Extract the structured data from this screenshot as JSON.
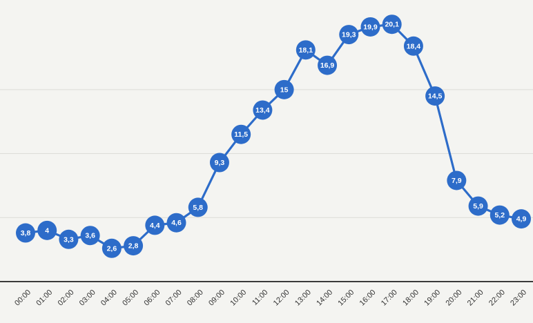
{
  "chart_data": {
    "type": "line",
    "title": "",
    "xlabel": "",
    "ylabel": "",
    "categories": [
      "00:00",
      "01:00",
      "02:00",
      "03:00",
      "04:00",
      "05:00",
      "06:00",
      "07:00",
      "08:00",
      "09:00",
      "10:00",
      "11:00",
      "12:00",
      "13:00",
      "14:00",
      "15:00",
      "16:00",
      "17:00",
      "18:00",
      "19:00",
      "20:00",
      "21:00",
      "22:00",
      "23:00"
    ],
    "series": [
      {
        "values": [
          3.8,
          4,
          3.3,
          3.6,
          2.6,
          2.8,
          4.4,
          4.6,
          5.8,
          9.3,
          11.5,
          13.4,
          15,
          18.1,
          16.9,
          19.3,
          19.9,
          20.1,
          18.4,
          14.5,
          7.9,
          5.9,
          5.2,
          4.9
        ],
        "labels": [
          "3,8",
          "4",
          "3,3",
          "3,6",
          "2,6",
          "2,8",
          "4,4",
          "4,6",
          "5,8",
          "9,3",
          "11,5",
          "13,4",
          "15",
          "18,1",
          "16,9",
          "19,3",
          "19,9",
          "20,1",
          "18,4",
          "14,5",
          "7,9",
          "5,9",
          "5,2",
          "4,9"
        ]
      }
    ],
    "ylim": [
      0,
      22
    ],
    "grid": true,
    "legend": "none"
  },
  "colors": {
    "series": "#2d6cc9",
    "background": "#f4f4f1"
  }
}
